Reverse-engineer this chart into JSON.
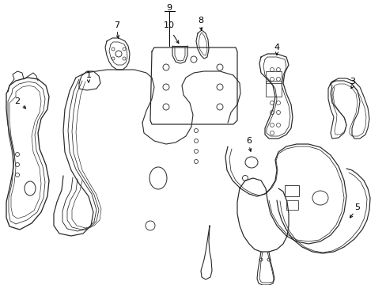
{
  "background_color": "#ffffff",
  "line_color": "#2a2a2a",
  "line_width": 0.8,
  "label_fontsize": 8,
  "figsize": [
    4.89,
    3.6
  ],
  "dpi": 100,
  "xlim": [
    0,
    489
  ],
  "ylim": [
    0,
    360
  ]
}
